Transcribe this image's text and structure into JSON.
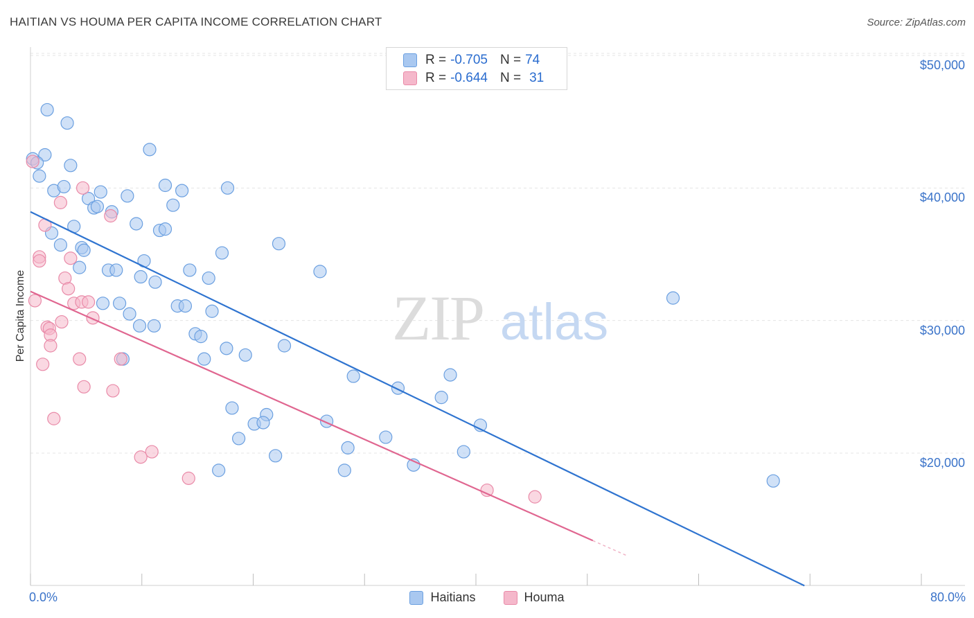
{
  "header": {
    "title": "HAITIAN VS HOUMA PER CAPITA INCOME CORRELATION CHART",
    "source": "Source: ZipAtlas.com"
  },
  "watermark": {
    "left": "ZIP",
    "right": "atlas"
  },
  "legend_top": {
    "rows": [
      {
        "r_label": "R =",
        "r_value": "-0.705",
        "n_label": "N =",
        "n_value": "74",
        "color": "#a9c8f0"
      },
      {
        "r_label": "R =",
        "r_value": "-0.644",
        "n_label": "N =",
        "n_value": "31",
        "color": "#f5b8cb"
      }
    ]
  },
  "legend_bottom": {
    "items": [
      {
        "label": "Haitians",
        "color": "#a9c8f0"
      },
      {
        "label": "Houma",
        "color": "#f5b8cb"
      }
    ]
  },
  "colors": {
    "haitians_fill": "#a9c8f0",
    "haitians_stroke": "#6a9fe0",
    "haitians_line": "#2f74d0",
    "houma_fill": "#f5b8cb",
    "houma_stroke": "#e98aa8",
    "houma_line": "#e06690",
    "grid": "#e4e4e4",
    "tick_text": "#3a73c9"
  },
  "chart_data": {
    "type": "scatter",
    "title": "HAITIAN VS HOUMA PER CAPITA INCOME CORRELATION CHART",
    "xlabel": "",
    "ylabel": "Per Capita Income",
    "xlim": [
      0,
      80
    ],
    "ylim": [
      10000,
      52000
    ],
    "x_tick_labels": [
      {
        "value": 0,
        "label": "0.0%"
      },
      {
        "value": 80,
        "label": "80.0%"
      }
    ],
    "y_ticks": [
      {
        "value": 20000,
        "label": "$20,000"
      },
      {
        "value": 30000,
        "label": "$30,000"
      },
      {
        "value": 40000,
        "label": "$40,000"
      },
      {
        "value": 50000,
        "label": "$50,000"
      }
    ],
    "grid": true,
    "legend_position": "bottom-center",
    "series": [
      {
        "name": "Haitians",
        "r": -0.705,
        "n": 74,
        "trend": {
          "x": [
            0,
            69.5
          ],
          "y": [
            38200,
            10000
          ]
        },
        "points": [
          [
            1.5,
            45900
          ],
          [
            3.3,
            44900
          ],
          [
            0.2,
            42200
          ],
          [
            1.3,
            42500
          ],
          [
            0.6,
            41900
          ],
          [
            0.8,
            40900
          ],
          [
            3.6,
            41700
          ],
          [
            10.7,
            42900
          ],
          [
            2.1,
            39800
          ],
          [
            3.0,
            40100
          ],
          [
            5.2,
            39200
          ],
          [
            6.3,
            39700
          ],
          [
            8.7,
            39400
          ],
          [
            12.1,
            40200
          ],
          [
            13.6,
            39800
          ],
          [
            17.7,
            40000
          ],
          [
            5.7,
            38500
          ],
          [
            6.0,
            38600
          ],
          [
            7.3,
            38200
          ],
          [
            12.8,
            38700
          ],
          [
            3.9,
            37100
          ],
          [
            9.5,
            37300
          ],
          [
            11.6,
            36800
          ],
          [
            12.1,
            36900
          ],
          [
            1.9,
            36600
          ],
          [
            2.7,
            35700
          ],
          [
            4.6,
            35500
          ],
          [
            4.8,
            35300
          ],
          [
            17.2,
            35100
          ],
          [
            22.3,
            35800
          ],
          [
            4.4,
            34000
          ],
          [
            10.2,
            34500
          ],
          [
            7.0,
            33800
          ],
          [
            7.7,
            33800
          ],
          [
            14.3,
            33800
          ],
          [
            26.0,
            33700
          ],
          [
            9.9,
            33300
          ],
          [
            16.0,
            33200
          ],
          [
            11.2,
            32900
          ],
          [
            6.5,
            31300
          ],
          [
            8.0,
            31300
          ],
          [
            13.2,
            31100
          ],
          [
            13.9,
            31100
          ],
          [
            57.7,
            31700
          ],
          [
            8.9,
            30500
          ],
          [
            16.3,
            30700
          ],
          [
            9.8,
            29600
          ],
          [
            11.1,
            29600
          ],
          [
            14.8,
            29000
          ],
          [
            15.3,
            28800
          ],
          [
            22.8,
            28100
          ],
          [
            17.6,
            27900
          ],
          [
            19.3,
            27400
          ],
          [
            8.3,
            27100
          ],
          [
            15.6,
            27100
          ],
          [
            29.0,
            25800
          ],
          [
            33.0,
            24900
          ],
          [
            37.7,
            25900
          ],
          [
            18.1,
            23400
          ],
          [
            21.2,
            22900
          ],
          [
            36.9,
            24200
          ],
          [
            20.1,
            22200
          ],
          [
            20.9,
            22300
          ],
          [
            26.6,
            22400
          ],
          [
            31.9,
            21200
          ],
          [
            40.4,
            22100
          ],
          [
            18.7,
            21100
          ],
          [
            28.5,
            20400
          ],
          [
            34.4,
            19100
          ],
          [
            38.9,
            20100
          ],
          [
            22.0,
            19800
          ],
          [
            16.9,
            18700
          ],
          [
            28.2,
            18700
          ],
          [
            66.7,
            17900
          ]
        ]
      },
      {
        "name": "Houma",
        "r": -0.644,
        "n": 31,
        "trend": {
          "x": [
            0,
            50.5
          ],
          "y": [
            32200,
            13400
          ]
        },
        "points": [
          [
            0.2,
            42000
          ],
          [
            4.7,
            40000
          ],
          [
            2.7,
            38900
          ],
          [
            7.2,
            37900
          ],
          [
            1.3,
            37200
          ],
          [
            0.8,
            34800
          ],
          [
            0.8,
            34500
          ],
          [
            3.6,
            34700
          ],
          [
            3.1,
            33200
          ],
          [
            3.4,
            32400
          ],
          [
            0.4,
            31500
          ],
          [
            3.9,
            31300
          ],
          [
            4.6,
            31400
          ],
          [
            5.2,
            31400
          ],
          [
            1.5,
            29500
          ],
          [
            1.7,
            29400
          ],
          [
            2.8,
            29900
          ],
          [
            5.6,
            30200
          ],
          [
            1.8,
            28900
          ],
          [
            1.8,
            28100
          ],
          [
            4.4,
            27100
          ],
          [
            8.1,
            27100
          ],
          [
            1.1,
            26700
          ],
          [
            4.8,
            25000
          ],
          [
            7.4,
            24700
          ],
          [
            2.1,
            22600
          ],
          [
            10.9,
            20100
          ],
          [
            9.9,
            19700
          ],
          [
            14.2,
            18100
          ],
          [
            41.0,
            17200
          ],
          [
            45.3,
            16700
          ]
        ]
      }
    ]
  }
}
